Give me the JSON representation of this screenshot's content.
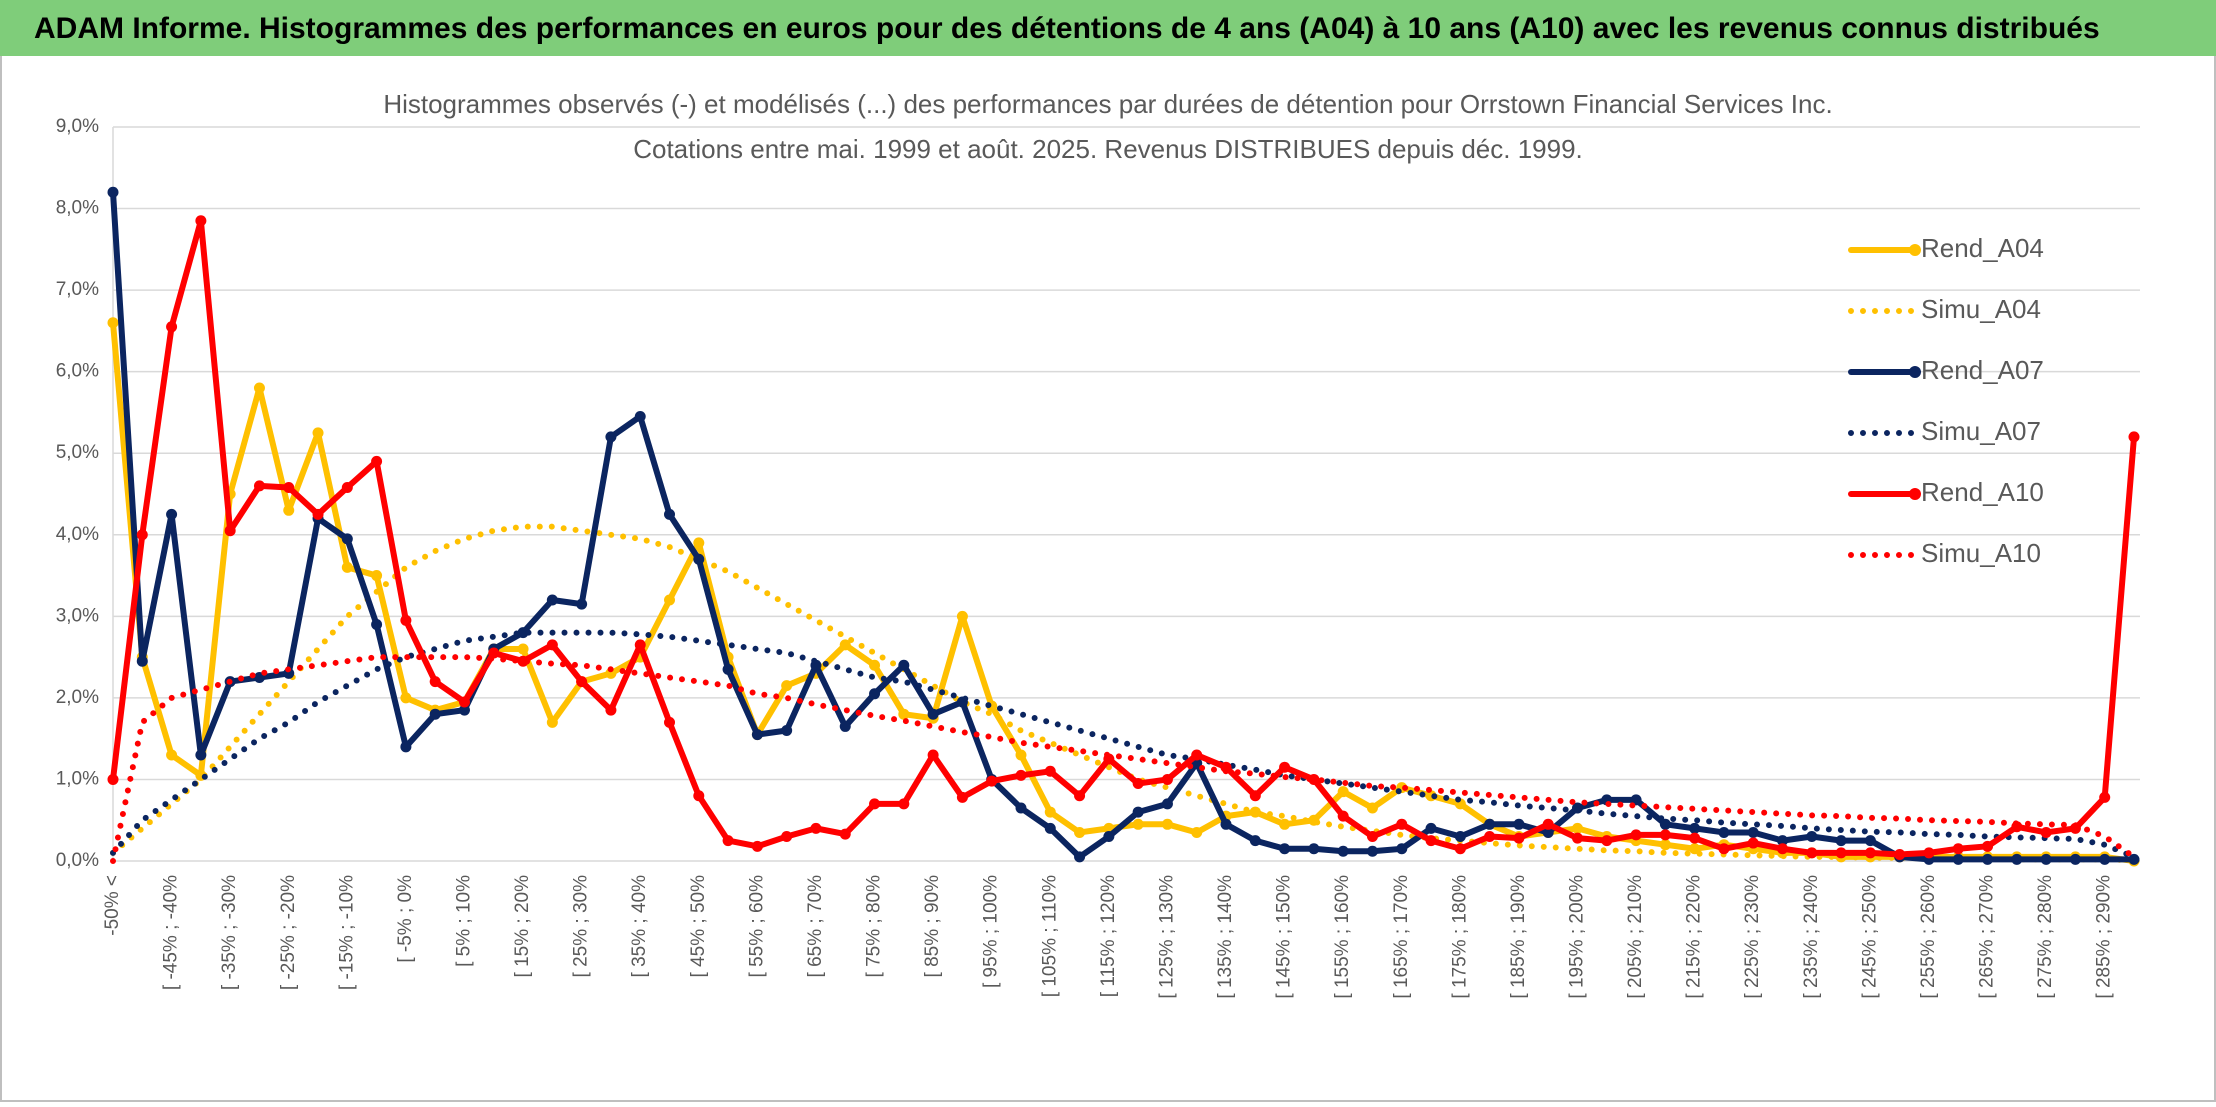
{
  "chart_data": {
    "type": "line",
    "header": "ADAM Informe. Histogrammes des performances en euros pour des détentions de 4 ans (A04) à 10 ans (A10) avec les revenus connus distribués",
    "title": "Histogrammes observés (-) et modélisés (...) des performances par durées de détention pour Orrstown Financial Services Inc.",
    "subtitle": "Cotations entre mai. 1999 et août. 2025. Revenus DISTRIBUES depuis déc. 1999.",
    "categories": [
      "-50% <",
      null,
      "[ -45% ; -40%",
      null,
      "[ -35% ; -30%",
      null,
      "[ -25% ; -20%",
      null,
      "[ -15% ; -10%",
      null,
      "[ -5% ; 0%",
      null,
      "[ 5% ; 10%",
      null,
      "[ 15% ; 20%",
      null,
      "[ 25% ; 30%",
      null,
      "[ 35% ; 40%",
      null,
      "[ 45% ; 50%",
      null,
      "[ 55% ; 60%",
      null,
      "[ 65% ; 70%",
      null,
      "[ 75% ; 80%",
      null,
      "[ 85% ; 90%",
      null,
      "[ 95% ; 100%",
      null,
      "[ 105% ; 110%",
      null,
      "[ 115% ; 120%",
      null,
      "[ 125% ; 130%",
      null,
      "[ 135% ; 140%",
      null,
      "[ 145% ; 150%",
      null,
      "[ 155% ; 160%",
      null,
      "[ 165% ; 170%",
      null,
      "[ 175% ; 180%",
      null,
      "[ 185% ; 190%",
      null,
      "[ 195% ; 200%",
      null,
      "[ 205% ; 210%",
      null,
      "[ 215% ; 220%",
      null,
      "[ 225% ; 230%",
      null,
      "[ 235% ; 240%",
      null,
      "[ 245% ; 250%",
      null,
      "[ 255% ; 260%",
      null,
      "[ 265% ; 270%",
      null,
      "[ 275% ; 280%",
      null,
      "[ 285% ; 290%",
      null
    ],
    "series": [
      {
        "name": "Rend_A04",
        "color": "#ffc000",
        "line_style": "solid",
        "values": [
          6.6,
          2.5,
          1.3,
          1.05,
          4.5,
          5.8,
          4.3,
          5.25,
          3.6,
          3.5,
          2.0,
          1.85,
          1.95,
          2.6,
          2.6,
          1.7,
          2.2,
          2.3,
          2.5,
          3.2,
          3.9,
          2.5,
          1.55,
          2.15,
          2.3,
          2.65,
          2.4,
          1.8,
          1.75,
          3.0,
          1.9,
          1.3,
          0.6,
          0.35,
          0.4,
          0.45,
          0.45,
          0.35,
          0.55,
          0.6,
          0.45,
          0.5,
          0.85,
          0.65,
          0.9,
          0.8,
          0.7,
          0.45,
          0.3,
          0.35,
          0.4,
          0.3,
          0.25,
          0.2,
          0.15,
          0.2,
          0.15,
          0.1,
          0.1,
          0.05,
          0.05,
          0.05,
          0.05,
          0.05,
          0.05,
          0.05,
          0.05,
          0.05,
          0.05,
          0.0
        ]
      },
      {
        "name": "Simu_A04",
        "color": "#ffc000",
        "line_style": "dotted",
        "values": [
          0.1,
          0.4,
          0.7,
          1.0,
          1.4,
          1.8,
          2.2,
          2.6,
          3.0,
          3.3,
          3.6,
          3.8,
          3.95,
          4.05,
          4.1,
          4.1,
          4.05,
          4.0,
          3.95,
          3.85,
          3.7,
          3.55,
          3.35,
          3.15,
          2.95,
          2.75,
          2.55,
          2.35,
          2.15,
          1.95,
          1.8,
          1.6,
          1.45,
          1.3,
          1.15,
          1.0,
          0.9,
          0.8,
          0.7,
          0.6,
          0.55,
          0.48,
          0.42,
          0.37,
          0.32,
          0.28,
          0.25,
          0.22,
          0.19,
          0.17,
          0.15,
          0.13,
          0.12,
          0.1,
          0.09,
          0.08,
          0.07,
          0.06,
          0.05,
          0.05,
          0.04,
          0.04,
          0.03,
          0.03,
          0.03,
          0.02,
          0.02,
          0.02,
          0.02,
          0.01
        ]
      },
      {
        "name": "Rend_A07",
        "color": "#0b2560",
        "line_style": "solid",
        "values": [
          8.2,
          2.45,
          4.25,
          1.3,
          2.2,
          2.25,
          2.3,
          4.2,
          3.95,
          2.9,
          1.4,
          1.8,
          1.85,
          2.6,
          2.8,
          3.2,
          3.15,
          5.2,
          5.45,
          4.25,
          3.7,
          2.35,
          1.55,
          1.6,
          2.4,
          1.65,
          2.05,
          2.4,
          1.8,
          1.95,
          1.0,
          0.65,
          0.4,
          0.05,
          0.3,
          0.6,
          0.7,
          1.2,
          0.45,
          0.25,
          0.15,
          0.15,
          0.12,
          0.12,
          0.15,
          0.4,
          0.3,
          0.45,
          0.45,
          0.35,
          0.65,
          0.75,
          0.75,
          0.45,
          0.4,
          0.35,
          0.35,
          0.25,
          0.3,
          0.25,
          0.25,
          0.05,
          0.02,
          0.02,
          0.02,
          0.02,
          0.02,
          0.02,
          0.02,
          0.02
        ]
      },
      {
        "name": "Simu_A07",
        "color": "#0b2560",
        "line_style": "dotted",
        "values": [
          0.1,
          0.5,
          0.75,
          1.0,
          1.25,
          1.5,
          1.7,
          1.95,
          2.15,
          2.35,
          2.5,
          2.6,
          2.7,
          2.75,
          2.8,
          2.8,
          2.8,
          2.8,
          2.78,
          2.75,
          2.7,
          2.65,
          2.6,
          2.55,
          2.45,
          2.35,
          2.25,
          2.2,
          2.1,
          2.0,
          1.9,
          1.8,
          1.7,
          1.6,
          1.5,
          1.4,
          1.3,
          1.25,
          1.18,
          1.12,
          1.05,
          1.0,
          0.95,
          0.9,
          0.85,
          0.8,
          0.75,
          0.72,
          0.68,
          0.65,
          0.62,
          0.58,
          0.55,
          0.52,
          0.5,
          0.47,
          0.45,
          0.43,
          0.4,
          0.38,
          0.36,
          0.35,
          0.33,
          0.32,
          0.3,
          0.29,
          0.28,
          0.27,
          0.2,
          0.05
        ]
      },
      {
        "name": "Rend_A10",
        "color": "#ff0000",
        "line_style": "solid",
        "values": [
          1.0,
          4.0,
          6.55,
          7.85,
          4.05,
          4.6,
          4.58,
          4.25,
          4.58,
          4.9,
          2.95,
          2.2,
          1.95,
          2.55,
          2.45,
          2.65,
          2.2,
          1.85,
          2.65,
          1.7,
          0.8,
          0.25,
          0.18,
          0.3,
          0.4,
          0.33,
          0.7,
          0.7,
          1.3,
          0.78,
          0.98,
          1.05,
          1.1,
          0.8,
          1.25,
          0.95,
          1.0,
          1.3,
          1.15,
          0.8,
          1.15,
          1.0,
          0.55,
          0.3,
          0.45,
          0.25,
          0.15,
          0.3,
          0.28,
          0.45,
          0.28,
          0.25,
          0.32,
          0.32,
          0.28,
          0.15,
          0.22,
          0.15,
          0.1,
          0.1,
          0.1,
          0.08,
          0.1,
          0.15,
          0.18,
          0.42,
          0.35,
          0.4,
          0.78,
          5.2
        ]
      },
      {
        "name": "Simu_A10",
        "color": "#ff0000",
        "line_style": "dotted",
        "values": [
          0.0,
          1.7,
          2.0,
          2.1,
          2.2,
          2.3,
          2.35,
          2.4,
          2.45,
          2.5,
          2.5,
          2.5,
          2.5,
          2.48,
          2.45,
          2.42,
          2.4,
          2.35,
          2.3,
          2.25,
          2.2,
          2.15,
          2.05,
          2.0,
          1.92,
          1.85,
          1.78,
          1.72,
          1.65,
          1.58,
          1.52,
          1.45,
          1.4,
          1.35,
          1.3,
          1.25,
          1.2,
          1.15,
          1.1,
          1.07,
          1.03,
          1.0,
          0.96,
          0.92,
          0.9,
          0.87,
          0.84,
          0.81,
          0.78,
          0.75,
          0.72,
          0.7,
          0.68,
          0.66,
          0.64,
          0.62,
          0.6,
          0.58,
          0.56,
          0.55,
          0.53,
          0.52,
          0.5,
          0.49,
          0.48,
          0.46,
          0.45,
          0.44,
          0.3,
          0.05
        ]
      }
    ],
    "ylim": [
      0,
      9
    ],
    "yticks": [
      {
        "value": 0,
        "label": "0,0%"
      },
      {
        "value": 1,
        "label": "1,0%"
      },
      {
        "value": 2,
        "label": "2,0%"
      },
      {
        "value": 3,
        "label": "3,0%"
      },
      {
        "value": 4,
        "label": "4,0%"
      },
      {
        "value": 5,
        "label": "5,0%"
      },
      {
        "value": 6,
        "label": "6,0%"
      },
      {
        "value": 7,
        "label": "7,0%"
      },
      {
        "value": 8,
        "label": "8,0%"
      },
      {
        "value": 9,
        "label": "9,0%"
      }
    ],
    "grid": true,
    "legend": "right"
  }
}
